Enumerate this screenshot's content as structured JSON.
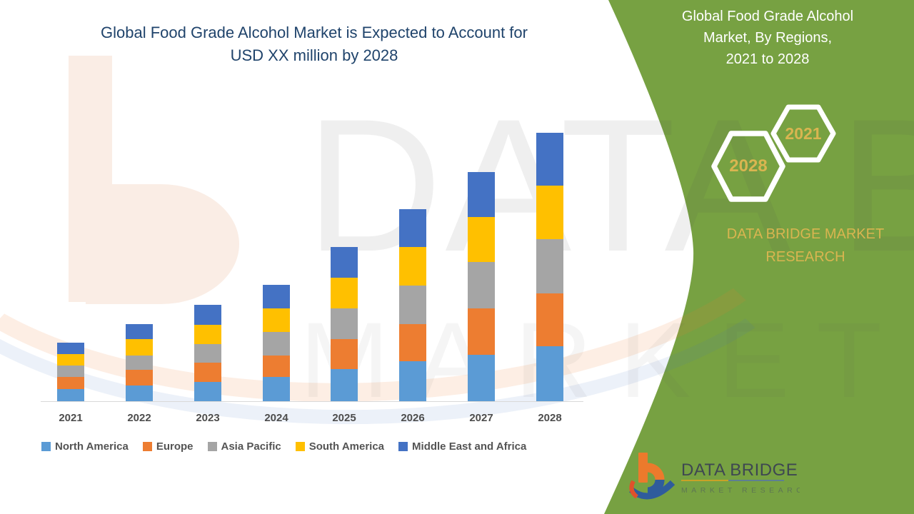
{
  "title": {
    "text": "Global Food Grade Alcohol Market is Expected to Account for\nUSD XX million by 2028"
  },
  "panel": {
    "title": "Global Food Grade Alcohol\nMarket, By Regions,\n2021 to 2028",
    "hexagon_labels": {
      "front": "2028",
      "back": "2021"
    },
    "brand": "DATA BRIDGE MARKET\nRESEARCH",
    "background_color": "#77A142",
    "accent_text_color": "#D9B550"
  },
  "watermark": {
    "primary": "DATA BRIDGE",
    "secondary": "MARKET RESEARCH"
  },
  "logo": {
    "name": "DATA BRIDGE",
    "subtitle": "MARKET RESEARCH"
  },
  "chart_data": {
    "type": "bar",
    "stacked": true,
    "title": "Global Food Grade Alcohol Market is Expected to Account for USD XX million by 2028",
    "value_unit": "USD million (values displayed as XX)",
    "y_axis_visible": false,
    "grid": false,
    "legend_position": "bottom",
    "categories": [
      "2021",
      "2022",
      "2023",
      "2024",
      "2025",
      "2026",
      "2027",
      "2028"
    ],
    "series": [
      {
        "name": "North America",
        "color": "#5B9BD5",
        "values": [
          17,
          22,
          27,
          34,
          45,
          56,
          65,
          77
        ]
      },
      {
        "name": "Europe",
        "color": "#ED7D31",
        "values": [
          17,
          22,
          27,
          30,
          42,
          52,
          65,
          74
        ]
      },
      {
        "name": "Asia Pacific",
        "color": "#A5A5A5",
        "values": [
          16,
          20,
          26,
          33,
          43,
          54,
          65,
          76
        ]
      },
      {
        "name": "South America",
        "color": "#FFC000",
        "values": [
          16,
          23,
          27,
          33,
          43,
          54,
          63,
          75
        ]
      },
      {
        "name": "Middle East and Africa",
        "color": "#4472C4",
        "values": [
          16,
          21,
          28,
          33,
          43,
          53,
          63,
          74
        ]
      }
    ],
    "totals": [
      82,
      108,
      135,
      163,
      216,
      269,
      321,
      376
    ],
    "xlabel": "",
    "ylabel": ""
  }
}
